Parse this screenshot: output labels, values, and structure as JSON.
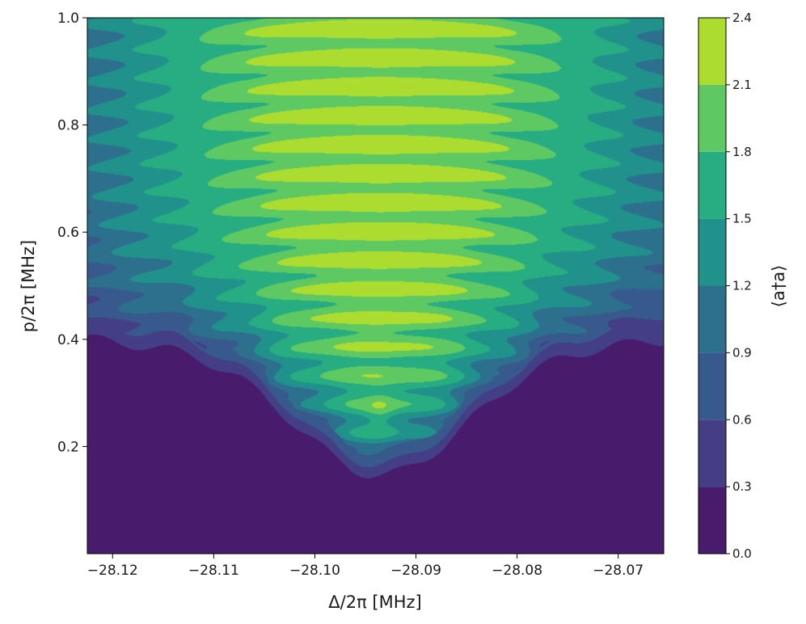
{
  "chart_data": {
    "type": "contourf",
    "colormap": "viridis",
    "xlabel": "Δ/2π [MHz]",
    "ylabel": "p/2π [MHz]",
    "colorbar_label": "⟨a†a⟩",
    "xlim": [
      -28.1225,
      -28.0655
    ],
    "ylim": [
      0.0,
      1.0
    ],
    "x_ticks": [
      -28.12,
      -28.11,
      -28.1,
      -28.09,
      -28.08,
      -28.07
    ],
    "x_tick_labels": [
      "−28.12",
      "−28.11",
      "−28.10",
      "−28.09",
      "−28.08",
      "−28.07"
    ],
    "y_ticks": [
      0.2,
      0.4,
      0.6,
      0.8,
      1.0
    ],
    "y_tick_labels": [
      "0.2",
      "0.4",
      "0.6",
      "0.8",
      "1.0"
    ],
    "colorbar_ticks": [
      0.0,
      0.3,
      0.6,
      0.9,
      1.2,
      1.5,
      1.8,
      2.1,
      2.4
    ],
    "colorbar_tick_labels": [
      "0.0",
      "0.3",
      "0.6",
      "0.9",
      "1.2",
      "1.5",
      "1.8",
      "2.1",
      "2.4"
    ],
    "levels": [
      0.0,
      0.3,
      0.6,
      0.9,
      1.2,
      1.5,
      1.8,
      2.1,
      2.4
    ],
    "level_colors": [
      "#481b6d",
      "#433e85",
      "#38598c",
      "#2d708e",
      "#21918c",
      "#27ad81",
      "#5ec962",
      "#addc30",
      "#d6e21f"
    ],
    "features": {
      "resonance_center_x": -28.0935,
      "min_boundary_y_at_center": 0.13,
      "baseline_boundary_y": 0.37,
      "peak_value": 2.3,
      "fringe_count_approx": 12
    }
  }
}
